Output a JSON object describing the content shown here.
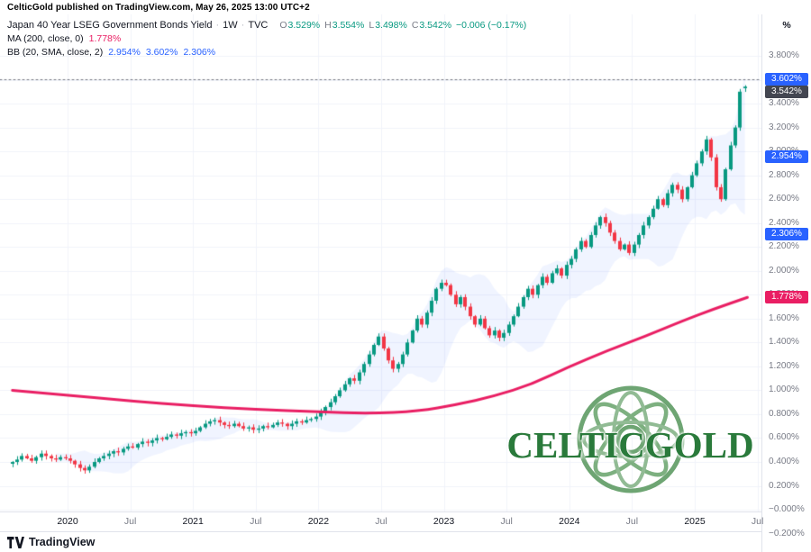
{
  "header": {
    "published": "CelticGold published on TradingView.com, May 26, 2025 13:00 UTC+2"
  },
  "legend": {
    "symbol": "Japan 40 Year LSEG Government Bonds Yield",
    "separator": "·",
    "interval": "1W",
    "exchange": "TVC",
    "o_key": "O",
    "o": "3.529%",
    "h_key": "H",
    "h": "3.554%",
    "l_key": "L",
    "l": "3.498%",
    "c_key": "C",
    "c": "3.542%",
    "change": "−0.006 (−0.17%)",
    "ma_label": "MA (200, close, 0)",
    "ma_value": "1.778%",
    "bb_label": "BB (20, SMA, close, 2)",
    "bb_basis": "2.954%",
    "bb_upper": "3.602%",
    "bb_lower": "2.306%"
  },
  "price_axis": {
    "unit": "%",
    "ticks": [
      {
        "label": "3.800%",
        "v": 3.8
      },
      {
        "label": "3.600%",
        "v": 3.6
      },
      {
        "label": "3.400%",
        "v": 3.4
      },
      {
        "label": "3.200%",
        "v": 3.2
      },
      {
        "label": "3.000%",
        "v": 3.0
      },
      {
        "label": "2.800%",
        "v": 2.8
      },
      {
        "label": "2.600%",
        "v": 2.6
      },
      {
        "label": "2.400%",
        "v": 2.4
      },
      {
        "label": "2.200%",
        "v": 2.2
      },
      {
        "label": "2.000%",
        "v": 2.0
      },
      {
        "label": "1.800%",
        "v": 1.8
      },
      {
        "label": "1.600%",
        "v": 1.6
      },
      {
        "label": "1.400%",
        "v": 1.4
      },
      {
        "label": "1.200%",
        "v": 1.2
      },
      {
        "label": "1.000%",
        "v": 1.0
      },
      {
        "label": "0.800%",
        "v": 0.8
      },
      {
        "label": "0.600%",
        "v": 0.6
      },
      {
        "label": "0.400%",
        "v": 0.4
      },
      {
        "label": "0.200%",
        "v": 0.2
      },
      {
        "label": "−0.000%",
        "v": 0.0
      },
      {
        "label": "−0.200%",
        "v": -0.2
      }
    ],
    "tags": [
      {
        "label": "3.602%",
        "v": 3.602,
        "color": "#2962ff"
      },
      {
        "label": "3.542%",
        "v": 3.542,
        "color": "#434651"
      },
      {
        "label": "2.954%",
        "v": 2.954,
        "color": "#2962ff"
      },
      {
        "label": "2.306%",
        "v": 2.306,
        "color": "#2962ff"
      },
      {
        "label": "1.778%",
        "v": 1.778,
        "color": "#e91e63"
      }
    ]
  },
  "time_axis": {
    "labels": [
      {
        "label": "2020",
        "t": 2020.0,
        "major": true
      },
      {
        "label": "Jul",
        "t": 2020.5,
        "major": false
      },
      {
        "label": "2021",
        "t": 2021.0,
        "major": true
      },
      {
        "label": "Jul",
        "t": 2021.5,
        "major": false
      },
      {
        "label": "2022",
        "t": 2022.0,
        "major": true
      },
      {
        "label": "Jul",
        "t": 2022.5,
        "major": false
      },
      {
        "label": "2023",
        "t": 2023.0,
        "major": true
      },
      {
        "label": "Jul",
        "t": 2023.5,
        "major": false
      },
      {
        "label": "2024",
        "t": 2024.0,
        "major": true
      },
      {
        "label": "Jul",
        "t": 2024.5,
        "major": false
      },
      {
        "label": "2025",
        "t": 2025.0,
        "major": true
      },
      {
        "label": "Jul",
        "t": 2025.5,
        "major": false
      }
    ]
  },
  "watermark": {
    "text": "CELTICGOLD"
  },
  "footer": {
    "brand": "TradingView"
  },
  "chart_data": {
    "type": "candlestick",
    "title": "Japan 40 Year LSEG Government Bonds Yield, 1W, TVC",
    "ylabel": "%",
    "ylim": [
      -0.2,
      3.8
    ],
    "x_start_year": 2019.56,
    "x_end_year": 2025.4,
    "sampling": "weekly series, estimated at ~bi-weekly samples",
    "closes": [
      0.4,
      0.42,
      0.45,
      0.43,
      0.41,
      0.44,
      0.47,
      0.45,
      0.43,
      0.42,
      0.44,
      0.43,
      0.41,
      0.38,
      0.35,
      0.33,
      0.36,
      0.4,
      0.43,
      0.45,
      0.47,
      0.49,
      0.48,
      0.51,
      0.53,
      0.52,
      0.55,
      0.57,
      0.56,
      0.58,
      0.6,
      0.59,
      0.61,
      0.63,
      0.62,
      0.64,
      0.65,
      0.64,
      0.66,
      0.69,
      0.72,
      0.74,
      0.75,
      0.73,
      0.71,
      0.7,
      0.72,
      0.7,
      0.68,
      0.69,
      0.67,
      0.68,
      0.7,
      0.69,
      0.71,
      0.73,
      0.72,
      0.7,
      0.72,
      0.74,
      0.73,
      0.75,
      0.76,
      0.78,
      0.82,
      0.86,
      0.9,
      0.95,
      1.0,
      1.05,
      1.1,
      1.08,
      1.15,
      1.22,
      1.3,
      1.38,
      1.45,
      1.35,
      1.25,
      1.18,
      1.22,
      1.3,
      1.4,
      1.5,
      1.6,
      1.55,
      1.65,
      1.75,
      1.85,
      1.9,
      1.88,
      1.8,
      1.72,
      1.78,
      1.7,
      1.62,
      1.55,
      1.6,
      1.52,
      1.46,
      1.5,
      1.44,
      1.48,
      1.55,
      1.62,
      1.7,
      1.78,
      1.85,
      1.8,
      1.88,
      1.95,
      1.9,
      1.98,
      2.02,
      1.96,
      2.05,
      2.1,
      2.18,
      2.25,
      2.2,
      2.3,
      2.38,
      2.45,
      2.4,
      2.32,
      2.25,
      2.18,
      2.22,
      2.15,
      2.22,
      2.3,
      2.38,
      2.45,
      2.52,
      2.6,
      2.55,
      2.65,
      2.72,
      2.68,
      2.6,
      2.7,
      2.8,
      2.9,
      3.0,
      3.1,
      2.95,
      2.7,
      2.6,
      2.85,
      3.05,
      3.2,
      3.5,
      3.542
    ],
    "last_bar": {
      "open": 3.529,
      "high": 3.554,
      "low": 3.498,
      "close": 3.542,
      "change": -0.006,
      "change_pct": -0.17
    },
    "ma200": {
      "name": "MA (200, close)",
      "last": 1.778,
      "color": "#e91e63",
      "points": [
        [
          2019.56,
          1.0
        ],
        [
          2020.0,
          0.96
        ],
        [
          2020.5,
          0.91
        ],
        [
          2021.0,
          0.87
        ],
        [
          2021.5,
          0.84
        ],
        [
          2022.0,
          0.82
        ],
        [
          2022.4,
          0.805
        ],
        [
          2022.8,
          0.825
        ],
        [
          2023.1,
          0.88
        ],
        [
          2023.4,
          0.95
        ],
        [
          2023.7,
          1.05
        ],
        [
          2024.0,
          1.2
        ],
        [
          2024.3,
          1.33
        ],
        [
          2024.6,
          1.45
        ],
        [
          2024.9,
          1.58
        ],
        [
          2025.15,
          1.68
        ],
        [
          2025.42,
          1.778
        ]
      ]
    },
    "bollinger": {
      "name": "BB (20, SMA, close, 2)",
      "basis_last": 2.954,
      "upper_last": 3.602,
      "lower_last": 2.306,
      "window_samples": 10,
      "stdev_mult": 2,
      "fill_rgba": "rgba(41,98,255,0.07)"
    },
    "dotted_level": 3.602,
    "colors": {
      "up": "#089981",
      "down": "#f23645",
      "grid": "#f0f3fa",
      "dotted": "#787b86"
    }
  }
}
